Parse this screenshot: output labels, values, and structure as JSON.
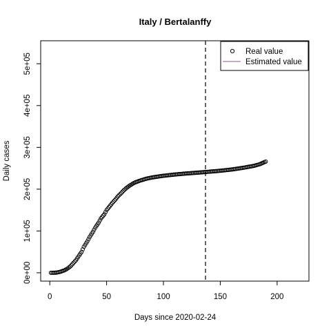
{
  "chart_data": {
    "type": "scatter",
    "title": "Italy / Bertalanffy",
    "xlabel": "Days since 2020-02-24",
    "ylabel": "Daily cases",
    "xlim": [
      -8,
      228
    ],
    "ylim": [
      -20000,
      555000
    ],
    "x_ticks": [
      {
        "value": 0,
        "label": "0"
      },
      {
        "value": 50,
        "label": "50"
      },
      {
        "value": 100,
        "label": "100"
      },
      {
        "value": 150,
        "label": "150"
      },
      {
        "value": 200,
        "label": "200"
      }
    ],
    "y_ticks": [
      {
        "value": 0,
        "label": "0e+00"
      },
      {
        "value": 100000,
        "label": "1e+05"
      },
      {
        "value": 200000,
        "label": "2e+05"
      },
      {
        "value": 300000,
        "label": "3e+05"
      },
      {
        "value": 400000,
        "label": "4e+05"
      },
      {
        "value": 500000,
        "label": "5e+05"
      }
    ],
    "cutoff_x": 137,
    "legend": {
      "position": "top-right",
      "entries": [
        {
          "label": "Real value",
          "symbol": "circle",
          "color": "#000000"
        },
        {
          "label": "Estimated value",
          "symbol": "line",
          "color": "#9b4f96"
        }
      ]
    },
    "series": [
      {
        "marker": "open-circle",
        "color": "#000000",
        "x_start": 1,
        "x_end": 190,
        "anchor_points": [
          [
            1,
            0
          ],
          [
            5,
            100
          ],
          [
            8,
            1500
          ],
          [
            10,
            3000
          ],
          [
            13,
            6000
          ],
          [
            15,
            9000
          ],
          [
            18,
            15000
          ],
          [
            20,
            21000
          ],
          [
            23,
            30000
          ],
          [
            25,
            38000
          ],
          [
            28,
            50000
          ],
          [
            30,
            62000
          ],
          [
            33,
            75000
          ],
          [
            35,
            85000
          ],
          [
            38,
            98000
          ],
          [
            40,
            108000
          ],
          [
            43,
            120000
          ],
          [
            45,
            130000
          ],
          [
            48,
            140000
          ],
          [
            50,
            150000
          ],
          [
            53,
            160000
          ],
          [
            55,
            167000
          ],
          [
            58,
            176000
          ],
          [
            60,
            183000
          ],
          [
            63,
            191000
          ],
          [
            65,
            197000
          ],
          [
            68,
            204000
          ],
          [
            70,
            208000
          ],
          [
            73,
            213000
          ],
          [
            75,
            216000
          ],
          [
            78,
            219000
          ],
          [
            80,
            221000
          ],
          [
            85,
            225000
          ],
          [
            90,
            228000
          ],
          [
            95,
            230000
          ],
          [
            100,
            232000
          ],
          [
            110,
            235000
          ],
          [
            120,
            237500
          ],
          [
            130,
            239500
          ],
          [
            137,
            241000
          ],
          [
            150,
            244000
          ],
          [
            160,
            247000
          ],
          [
            170,
            251000
          ],
          [
            180,
            256000
          ],
          [
            185,
            260000
          ],
          [
            190,
            266000
          ]
        ]
      }
    ]
  }
}
